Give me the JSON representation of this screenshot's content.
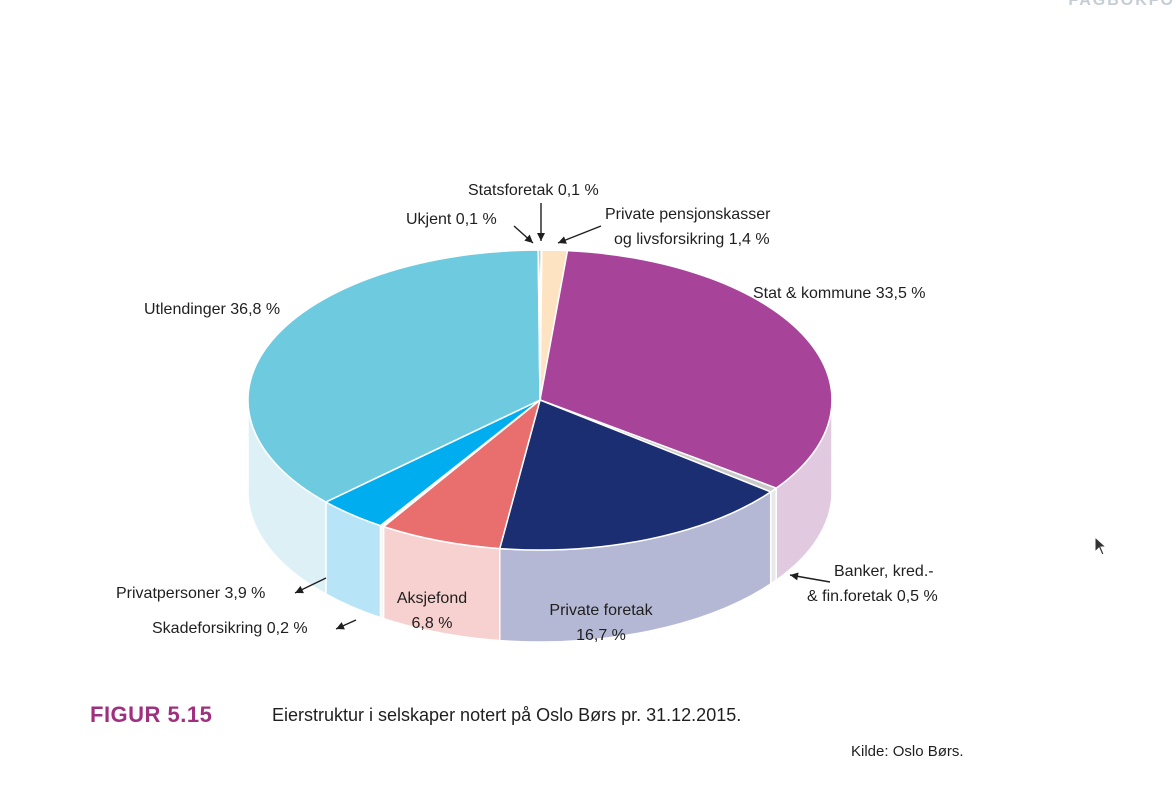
{
  "header_stub": "FAGBOKFO",
  "figure": {
    "label": "FIGUR 5.15",
    "caption": "Eierstruktur i selskaper notert på Oslo Børs pr. 31.12.2015.",
    "source": "Kilde: Oslo Børs."
  },
  "chart_data": {
    "type": "pie",
    "title": "",
    "slices": [
      {
        "name": "Statsforetak",
        "value": 0.1,
        "label_lines": [
          "Statsforetak 0,1 %"
        ],
        "color": "#1e6b3a",
        "side": "#5c8a69"
      },
      {
        "name": "Private pensjonskasser og livsforsikring",
        "value": 1.4,
        "label_lines": [
          "Private pensjonskasser",
          "og livsforsikring 1,4 %"
        ],
        "color": "#fde3c2",
        "side": "#fdeedd"
      },
      {
        "name": "Stat & kommune",
        "value": 33.5,
        "label_lines": [
          "Stat & kommune 33,5 %"
        ],
        "color": "#a7449a",
        "side": "#e1c9df"
      },
      {
        "name": "Banker, kred.- & fin.foretak",
        "value": 0.5,
        "label_lines": [
          "Banker, kred.-",
          "& fin.foretak 0,5 %"
        ],
        "color": "#c9c9c9",
        "side": "#e8e8e8"
      },
      {
        "name": "Private foretak",
        "value": 16.7,
        "label_lines": [
          "Private foretak",
          "16,7 %"
        ],
        "color": "#1c2e72",
        "side": "#b5b8d5"
      },
      {
        "name": "Aksjefond",
        "value": 6.8,
        "label_lines": [
          "Aksjefond",
          "6,8 %"
        ],
        "color": "#e96f6f",
        "side": "#f6d1cf"
      },
      {
        "name": "Skadeforsikring",
        "value": 0.2,
        "label_lines": [
          "Skadeforsikring 0,2 %"
        ],
        "color": "#ffffff",
        "side": "#f4f4f4"
      },
      {
        "name": "Privatpersoner",
        "value": 3.9,
        "label_lines": [
          "Privatpersoner 3,9 %"
        ],
        "color": "#00aeef",
        "side": "#b7e4f7"
      },
      {
        "name": "Utlendinger",
        "value": 36.8,
        "label_lines": [
          "Utlendinger 36,8 %"
        ],
        "color": "#6dcadf",
        "side": "#dcf0f6"
      },
      {
        "name": "Ukjent",
        "value": 0.1,
        "label_lines": [
          "Ukjent 0,1 %"
        ],
        "color": "#111111",
        "side": "#555555"
      }
    ]
  }
}
